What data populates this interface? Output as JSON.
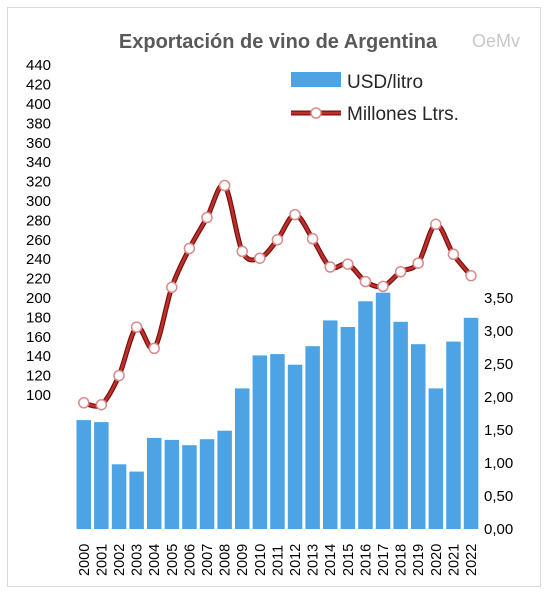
{
  "chart_data": {
    "type": "bar+line",
    "title": "Exportación de vino de Argentina",
    "logo_text": "OeMv",
    "categories": [
      "2000",
      "2001",
      "2002",
      "2003",
      "2004",
      "2005",
      "2006",
      "2007",
      "2008",
      "2009",
      "2010",
      "2011",
      "2012",
      "2013",
      "2014",
      "2015",
      "2016",
      "2017",
      "2018",
      "2019",
      "2020",
      "2021",
      "2022"
    ],
    "series": [
      {
        "name": "USD/litro",
        "type": "bar",
        "axis": "right",
        "color": "#4da3e3",
        "values": [
          1.65,
          1.62,
          0.98,
          0.87,
          1.38,
          1.35,
          1.27,
          1.36,
          1.49,
          2.13,
          2.63,
          2.65,
          2.49,
          2.77,
          3.16,
          3.06,
          3.45,
          3.58,
          3.14,
          2.8,
          2.13,
          2.84,
          3.2
        ]
      },
      {
        "name": "Millones Ltrs.",
        "type": "line",
        "axis": "left",
        "color": "#b22222",
        "values": [
          92,
          90,
          120,
          170,
          148,
          211,
          251,
          283,
          316,
          248,
          241,
          260,
          286,
          261,
          232,
          235,
          217,
          212,
          227,
          236,
          276,
          245,
          223
        ]
      }
    ],
    "y_left": {
      "ticks": [
        "100",
        "120",
        "140",
        "160",
        "180",
        "200",
        "220",
        "240",
        "260",
        "280",
        "300",
        "320",
        "340",
        "360",
        "380",
        "400",
        "420",
        "440"
      ]
    },
    "y_right": {
      "ticks": [
        "0,00",
        "0,50",
        "1,00",
        "1,50",
        "2,00",
        "2,50",
        "3,00",
        "3,50"
      ],
      "ylim": [
        0,
        3.5
      ]
    },
    "legend": "top-right",
    "grid": false
  }
}
